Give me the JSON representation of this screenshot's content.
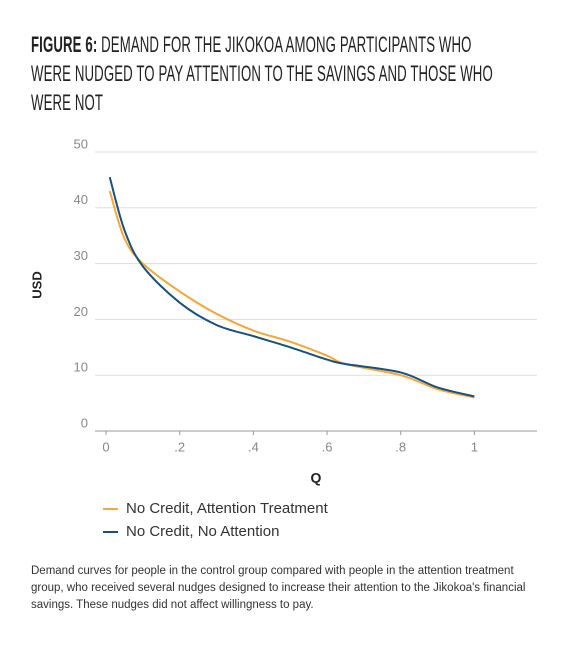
{
  "figure_label": "FIGURE 6:",
  "chart_data": {
    "type": "line",
    "title": "DEMAND FOR THE JIKOKOA AMONG PARTICIPANTS WHO WERE NUDGED TO PAY ATTENTION TO THE SAVINGS AND THOSE WHO WERE NOT",
    "x_label": "Q",
    "y_label": "USD",
    "x": [
      0.01,
      0.05,
      0.1,
      0.2,
      0.3,
      0.4,
      0.5,
      0.6,
      0.65,
      0.8,
      0.9,
      1.0
    ],
    "series": [
      {
        "name": "No Credit, Attention Treatment",
        "color": "#f0a93b",
        "values": [
          43,
          34.5,
          30,
          25,
          21,
          18,
          16,
          13.5,
          12,
          10,
          7.5,
          6
        ]
      },
      {
        "name": "No Credit, No Attention",
        "color": "#1d4f7c",
        "values": [
          45.5,
          36,
          29.5,
          23,
          19,
          17,
          15,
          12.8,
          12,
          10.5,
          7.8,
          6.2
        ]
      }
    ],
    "xlim": [
      -0.03,
      1.17
    ],
    "ylim": [
      0,
      50
    ],
    "xticks": [
      0,
      {
        "value": 0.2,
        "label": ".2"
      },
      {
        "value": 0.4,
        "label": ".4"
      },
      {
        "value": 0.6,
        "label": ".6"
      },
      {
        "value": 0.8,
        "label": ".8"
      },
      1
    ],
    "yticks": [
      0,
      10,
      20,
      30,
      40,
      50
    ],
    "grid": true
  },
  "caption": "Demand curves for people in the control group compared with people in the attention treatment group, who received several nudges designed to increase their attention to the Jikokoa's financial savings. These nudges did not affect willingness to pay."
}
